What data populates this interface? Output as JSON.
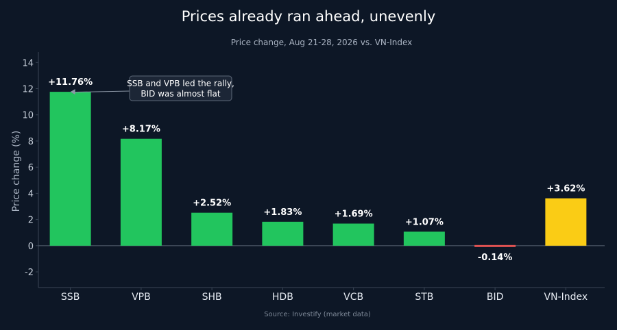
{
  "chart_data": {
    "type": "bar",
    "title": "Prices already ran ahead, unevenly",
    "subtitle": "Price change, Aug 21-28, 2026 vs. VN-Index",
    "xlabel": "",
    "ylabel": "Price change (%)",
    "categories": [
      "SSB",
      "VPB",
      "SHB",
      "HDB",
      "VCB",
      "STB",
      "BID",
      "VN-Index"
    ],
    "values": [
      11.76,
      8.17,
      2.52,
      1.83,
      1.69,
      1.07,
      -0.14,
      3.62
    ],
    "data_labels": [
      "+11.76%",
      "+8.17%",
      "+2.52%",
      "+1.83%",
      "+1.69%",
      "+1.07%",
      "-0.14%",
      "+3.62%"
    ],
    "ylim": [
      -3.2,
      14.8
    ],
    "yticks": [
      -2,
      0,
      2,
      4,
      6,
      8,
      10,
      12,
      14
    ],
    "grid": false,
    "colors": {
      "positive": "#22c55e",
      "negative": "#e05252",
      "benchmark": "#facc15",
      "background": "#0d1726",
      "zero_line": "#5a6675",
      "axis": "#3a4656"
    },
    "annotation": {
      "lines": [
        "SSB and VPB led the rally,",
        "BID was almost flat"
      ],
      "target_category": "SSB"
    },
    "source": "Source: Investify (market data)"
  }
}
